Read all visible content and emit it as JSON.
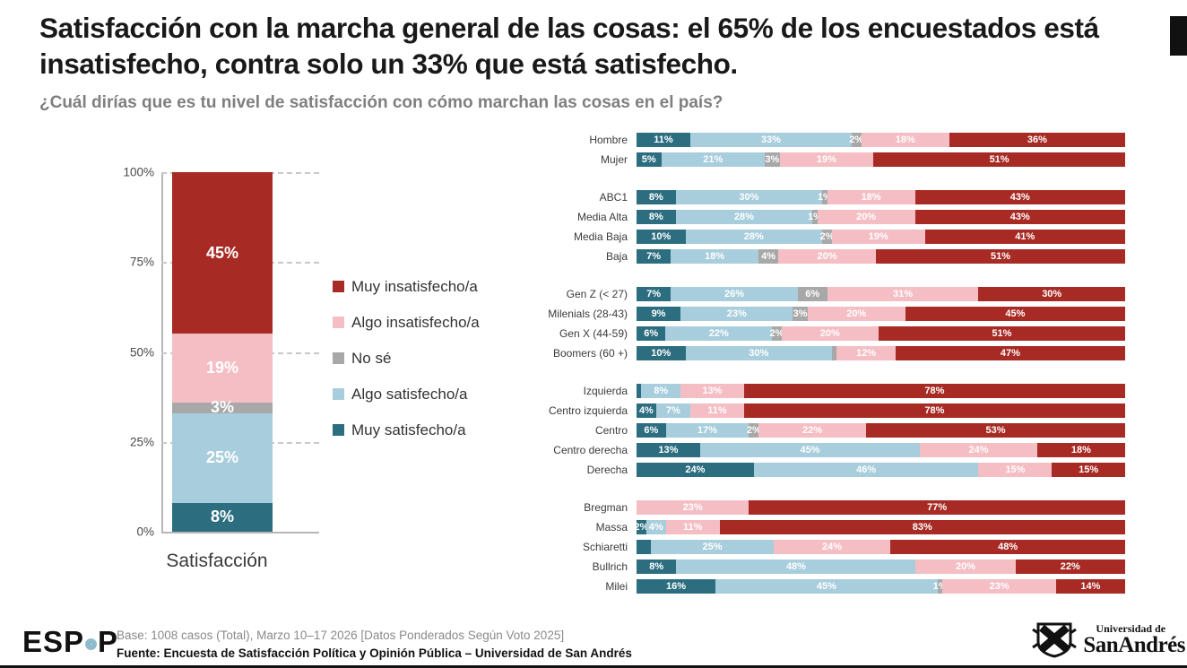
{
  "header": {
    "title": "Satisfacción con la marcha general de las cosas: el 65% de los encuestados está insatisfecho, contra solo un 33% que está satisfecho.",
    "subtitle": "¿Cuál dirías que es tu nivel de satisfacción con cómo marchan las cosas en el país?"
  },
  "colors": {
    "muy_insat": "#A72B24",
    "algo_insat": "#F4BEC4",
    "no_se": "#A8A8A8",
    "algo_sat": "#A8CDDC",
    "muy_sat": "#2C6E80"
  },
  "legend": {
    "items": [
      {
        "label": "Muy insatisfecho/a",
        "color_key": "muy_insat"
      },
      {
        "label": "Algo insatisfecho/a",
        "color_key": "algo_insat"
      },
      {
        "label": "No sé",
        "color_key": "no_se"
      },
      {
        "label": "Algo satisfecho/a",
        "color_key": "algo_sat"
      },
      {
        "label": "Muy satisfecho/a",
        "color_key": "muy_sat"
      }
    ]
  },
  "chart_data": [
    {
      "type": "bar",
      "subtype": "stacked_vertical",
      "categories": [
        "Satisfacción"
      ],
      "xlabel": "Satisfacción",
      "ylim": [
        0,
        100
      ],
      "yticks": [
        "0%",
        "25%",
        "50%",
        "75%",
        "100%"
      ],
      "grid": "dashed horizontal",
      "series": [
        {
          "name": "Muy satisfecho/a",
          "color_key": "muy_sat",
          "values": [
            8
          ]
        },
        {
          "name": "Algo satisfecho/a",
          "color_key": "algo_sat",
          "values": [
            25
          ]
        },
        {
          "name": "No sé",
          "color_key": "no_se",
          "values": [
            3
          ]
        },
        {
          "name": "Algo insatisfecho/a",
          "color_key": "algo_insat",
          "values": [
            19
          ]
        },
        {
          "name": "Muy insatisfecho/a",
          "color_key": "muy_insat",
          "values": [
            45
          ]
        }
      ]
    },
    {
      "type": "bar",
      "subtype": "stacked_horizontal",
      "segment_order": [
        "muy_sat",
        "algo_sat",
        "no_se",
        "algo_insat",
        "muy_insat"
      ],
      "groups": [
        {
          "rows": [
            {
              "label": "Hombre",
              "segments": [
                [
                  "muy_sat",
                  11,
                  "11%"
                ],
                [
                  "algo_sat",
                  33,
                  "33%"
                ],
                [
                  "no_se",
                  2,
                  "2%"
                ],
                [
                  "algo_insat",
                  18,
                  "18%"
                ],
                [
                  "muy_insat",
                  36,
                  "36%"
                ]
              ]
            },
            {
              "label": "Mujer",
              "segments": [
                [
                  "muy_sat",
                  5,
                  "5%"
                ],
                [
                  "algo_sat",
                  21,
                  "21%"
                ],
                [
                  "no_se",
                  3,
                  "3%"
                ],
                [
                  "algo_insat",
                  19,
                  "19%"
                ],
                [
                  "muy_insat",
                  51,
                  "51%"
                ]
              ]
            }
          ]
        },
        {
          "rows": [
            {
              "label": "ABC1",
              "segments": [
                [
                  "muy_sat",
                  8,
                  "8%"
                ],
                [
                  "algo_sat",
                  30,
                  "30%"
                ],
                [
                  "no_se",
                  1,
                  "1%"
                ],
                [
                  "algo_insat",
                  18,
                  "18%"
                ],
                [
                  "muy_insat",
                  43,
                  "43%"
                ]
              ]
            },
            {
              "label": "Media Alta",
              "segments": [
                [
                  "muy_sat",
                  8,
                  "8%"
                ],
                [
                  "algo_sat",
                  28,
                  "28%"
                ],
                [
                  "no_se",
                  1,
                  "1%"
                ],
                [
                  "algo_insat",
                  20,
                  "20%"
                ],
                [
                  "muy_insat",
                  43,
                  "43%"
                ]
              ]
            },
            {
              "label": "Media Baja",
              "segments": [
                [
                  "muy_sat",
                  10,
                  "10%"
                ],
                [
                  "algo_sat",
                  28,
                  "28%"
                ],
                [
                  "no_se",
                  2,
                  "2%"
                ],
                [
                  "algo_insat",
                  19,
                  "19%"
                ],
                [
                  "muy_insat",
                  41,
                  "41%"
                ]
              ]
            },
            {
              "label": "Baja",
              "segments": [
                [
                  "muy_sat",
                  7,
                  "7%"
                ],
                [
                  "algo_sat",
                  18,
                  "18%"
                ],
                [
                  "no_se",
                  4,
                  "4%"
                ],
                [
                  "algo_insat",
                  20,
                  "20%"
                ],
                [
                  "muy_insat",
                  51,
                  "51%"
                ]
              ]
            }
          ]
        },
        {
          "rows": [
            {
              "label": "Gen Z (< 27)",
              "segments": [
                [
                  "muy_sat",
                  7,
                  "7%"
                ],
                [
                  "algo_sat",
                  26,
                  "26%"
                ],
                [
                  "no_se",
                  6,
                  "6%"
                ],
                [
                  "algo_insat",
                  31,
                  "31%"
                ],
                [
                  "muy_insat",
                  30,
                  "30%"
                ]
              ]
            },
            {
              "label": "Milenials (28-43)",
              "segments": [
                [
                  "muy_sat",
                  9,
                  "9%"
                ],
                [
                  "algo_sat",
                  23,
                  "23%"
                ],
                [
                  "no_se",
                  3,
                  "3%"
                ],
                [
                  "algo_insat",
                  20,
                  "20%"
                ],
                [
                  "muy_insat",
                  45,
                  "45%"
                ]
              ]
            },
            {
              "label": "Gen X (44-59)",
              "segments": [
                [
                  "muy_sat",
                  6,
                  "6%"
                ],
                [
                  "algo_sat",
                  22,
                  "22%"
                ],
                [
                  "no_se",
                  2,
                  "2%"
                ],
                [
                  "algo_insat",
                  20,
                  "20%"
                ],
                [
                  "muy_insat",
                  51,
                  "51%"
                ]
              ]
            },
            {
              "label": "Boomers (60 +)",
              "segments": [
                [
                  "muy_sat",
                  10,
                  "10%"
                ],
                [
                  "algo_sat",
                  30,
                  "30%"
                ],
                [
                  "no_se",
                  1,
                  ""
                ],
                [
                  "algo_insat",
                  12,
                  "12%"
                ],
                [
                  "muy_insat",
                  47,
                  "47%"
                ]
              ]
            }
          ]
        },
        {
          "rows": [
            {
              "label": "Izquierda",
              "segments": [
                [
                  "muy_sat",
                  1,
                  ""
                ],
                [
                  "algo_sat",
                  8,
                  "8%"
                ],
                [
                  "algo_insat",
                  13,
                  "13%"
                ],
                [
                  "muy_insat",
                  78,
                  "78%"
                ]
              ]
            },
            {
              "label": "Centro izquierda",
              "segments": [
                [
                  "muy_sat",
                  4,
                  "4%"
                ],
                [
                  "algo_sat",
                  7,
                  "7%"
                ],
                [
                  "algo_insat",
                  11,
                  "11%"
                ],
                [
                  "muy_insat",
                  78,
                  "78%"
                ]
              ]
            },
            {
              "label": "Centro",
              "segments": [
                [
                  "muy_sat",
                  6,
                  "6%"
                ],
                [
                  "algo_sat",
                  17,
                  "17%"
                ],
                [
                  "no_se",
                  2,
                  "2%"
                ],
                [
                  "algo_insat",
                  22,
                  "22%"
                ],
                [
                  "muy_insat",
                  53,
                  "53%"
                ]
              ]
            },
            {
              "label": "Centro derecha",
              "segments": [
                [
                  "muy_sat",
                  13,
                  "13%"
                ],
                [
                  "algo_sat",
                  45,
                  "45%"
                ],
                [
                  "algo_insat",
                  24,
                  "24%"
                ],
                [
                  "muy_insat",
                  18,
                  "18%"
                ]
              ]
            },
            {
              "label": "Derecha",
              "segments": [
                [
                  "muy_sat",
                  24,
                  "24%"
                ],
                [
                  "algo_sat",
                  46,
                  "46%"
                ],
                [
                  "algo_insat",
                  15,
                  "15%"
                ],
                [
                  "muy_insat",
                  15,
                  "15%"
                ]
              ]
            }
          ]
        },
        {
          "rows": [
            {
              "label": "Bregman",
              "segments": [
                [
                  "algo_insat",
                  23,
                  "23%"
                ],
                [
                  "muy_insat",
                  77,
                  "77%"
                ]
              ]
            },
            {
              "label": "Massa",
              "segments": [
                [
                  "muy_sat",
                  2,
                  "2%"
                ],
                [
                  "algo_sat",
                  4,
                  "4%"
                ],
                [
                  "algo_insat",
                  11,
                  "11%"
                ],
                [
                  "muy_insat",
                  83,
                  "83%"
                ]
              ]
            },
            {
              "label": "Schiaretti",
              "segments": [
                [
                  "muy_sat",
                  3,
                  ""
                ],
                [
                  "algo_sat",
                  25,
                  "25%"
                ],
                [
                  "algo_insat",
                  24,
                  "24%"
                ],
                [
                  "muy_insat",
                  48,
                  "48%"
                ]
              ]
            },
            {
              "label": "Bullrich",
              "segments": [
                [
                  "muy_sat",
                  8,
                  "8%"
                ],
                [
                  "algo_sat",
                  48,
                  "48%"
                ],
                [
                  "algo_insat",
                  20,
                  "20%"
                ],
                [
                  "muy_insat",
                  22,
                  "22%"
                ]
              ]
            },
            {
              "label": "Milei",
              "segments": [
                [
                  "muy_sat",
                  16,
                  "16%"
                ],
                [
                  "algo_sat",
                  45,
                  "45%"
                ],
                [
                  "no_se",
                  1,
                  "1%"
                ],
                [
                  "algo_insat",
                  23,
                  "23%"
                ],
                [
                  "muy_insat",
                  14,
                  "14%"
                ]
              ]
            }
          ]
        }
      ]
    }
  ],
  "footer": {
    "logo_text": "ESPOP",
    "base_line": "Base: 1008 casos (Total), Marzo 10–17 2026 [Datos Ponderados Según Voto 2025]",
    "source_line": "Fuente: Encuesta de Satisfacción Política y Opinión Pública – Universidad de San Andrés",
    "university": {
      "line1": "Universidad de",
      "line2": "SanAndrés"
    }
  }
}
